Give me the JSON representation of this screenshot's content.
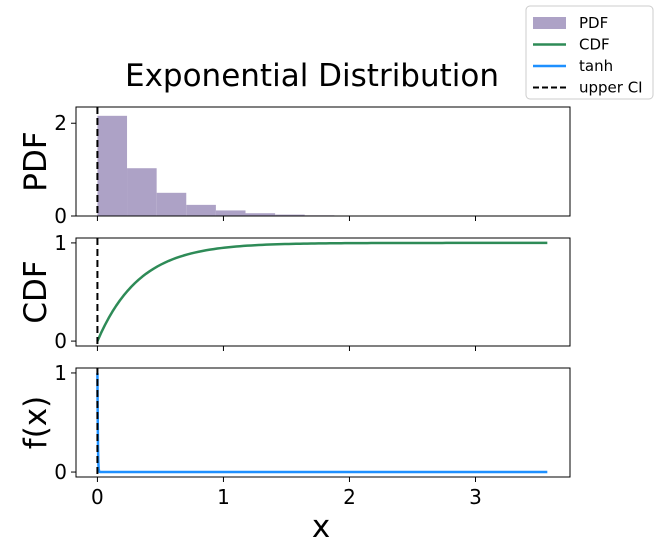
{
  "chart_data": {
    "type": "histogram+line",
    "title": "Exponential Distribution",
    "xlabel": "x",
    "xlim": [
      -0.17,
      3.75
    ],
    "x_ticks": [
      0,
      1,
      2,
      3
    ],
    "x_tick_labels": [
      "0",
      "1",
      "2",
      "3"
    ],
    "upper_ci": 0.0,
    "colors": {
      "pdf": "#ada2c6",
      "cdf": "#2e8b57",
      "tanh": "#1e90ff",
      "ci": "#000000"
    },
    "legend": {
      "placement": "upper right",
      "entries": [
        {
          "label": "PDF",
          "kind": "patch",
          "color": "#ada2c6"
        },
        {
          "label": "CDF",
          "kind": "line",
          "color": "#2e8b57"
        },
        {
          "label": "tanh",
          "kind": "line",
          "color": "#1e90ff"
        },
        {
          "label": "upper CI",
          "kind": "dashed",
          "color": "#000000"
        }
      ]
    },
    "panels": [
      {
        "ylabel": "PDF",
        "ylim": [
          0,
          2.35
        ],
        "y_ticks": [
          0,
          2
        ],
        "y_tick_labels": [
          "0",
          "2"
        ],
        "histogram": {
          "bin_edges": [
            0.0,
            0.235,
            0.47,
            0.705,
            0.94,
            1.175,
            1.41,
            1.645,
            1.88,
            2.115,
            2.35,
            2.585,
            2.82,
            3.055,
            3.29,
            3.525
          ],
          "values": [
            2.16,
            1.03,
            0.5,
            0.24,
            0.12,
            0.06,
            0.03,
            0.015,
            0.008,
            0.004,
            0.002,
            0.001,
            0.0005,
            0.0003,
            0.0002
          ]
        }
      },
      {
        "ylabel": "CDF",
        "ylim": [
          -0.05,
          1.05
        ],
        "y_ticks": [
          0,
          1
        ],
        "y_tick_labels": [
          "0",
          "1"
        ],
        "series": {
          "name": "CDF",
          "function": "1 - exp(-3x)",
          "x_max": 3.57,
          "samples": 120
        }
      },
      {
        "ylabel": "f(x)",
        "ylim": [
          -0.05,
          1.05
        ],
        "y_ticks": [
          0,
          1
        ],
        "y_tick_labels": [
          "0",
          "1"
        ],
        "series": {
          "name": "tanh",
          "function": "1 - tanh(200x)",
          "x_max": 3.57,
          "samples": 400
        }
      }
    ]
  }
}
